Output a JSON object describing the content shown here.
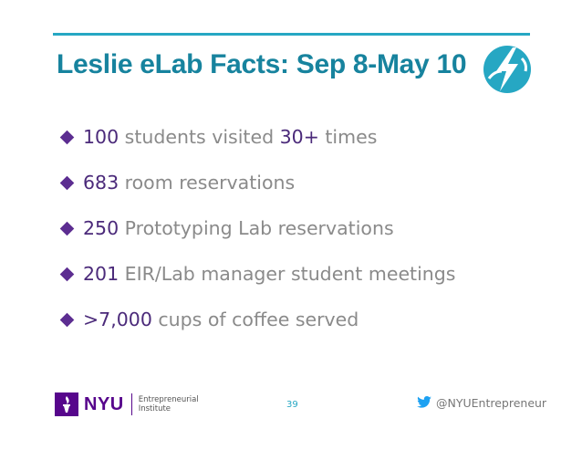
{
  "slide": {
    "title": "Leslie eLab Facts: Sep 8-May 10",
    "bullets": [
      {
        "parts": [
          {
            "text": "100",
            "accent": true
          },
          {
            "text": " students visited ",
            "accent": false
          },
          {
            "text": "30+",
            "accent": true
          },
          {
            "text": " times",
            "accent": false
          }
        ]
      },
      {
        "parts": [
          {
            "text": "683",
            "accent": true
          },
          {
            "text": " room reservations",
            "accent": false
          }
        ]
      },
      {
        "parts": [
          {
            "text": "250",
            "accent": true
          },
          {
            "text": " Prototyping Lab reservations",
            "accent": false
          }
        ]
      },
      {
        "parts": [
          {
            "text": "201",
            "accent": true
          },
          {
            "text": " EIR/Lab manager student meetings",
            "accent": false
          }
        ]
      },
      {
        "parts": [
          {
            "text": ">7,000",
            "accent": true
          },
          {
            "text": " cups of coffee served",
            "accent": false
          }
        ]
      }
    ]
  },
  "footer": {
    "logo_text": "NYU",
    "institute_line1": "Entrepreneurial",
    "institute_line2": "Institute",
    "page_number": "39",
    "twitter_handle": "@NYUEntrepreneur"
  },
  "icons": {
    "badge": "lightning-torch-badge-icon",
    "torch": "nyu-torch-icon",
    "twitter": "twitter-bird-icon"
  },
  "colors": {
    "accent_teal": "#26a7c3",
    "title_teal": "#17839e",
    "purple": "#57068c",
    "bullet_number": "#4b2a7a",
    "bullet_text": "#8a8a8a"
  }
}
